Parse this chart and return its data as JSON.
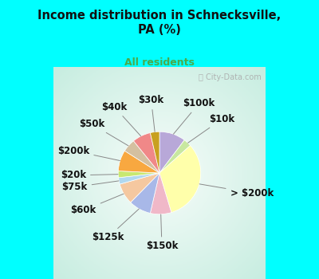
{
  "title": "Income distribution in Schnecksville,\nPA (%)",
  "subtitle": "All residents",
  "title_color": "#111111",
  "subtitle_color": "#4aaa4a",
  "bg_cyan": "#00ffff",
  "bg_chart_colors": [
    "#c8eee8",
    "#d8f0e0",
    "#e8f8f0"
  ],
  "watermark": "ⓘ City-Data.com",
  "slices": [
    {
      "label": "$100k",
      "value": 10.0,
      "color": "#b8a8d8"
    },
    {
      "label": "$10k",
      "value": 3.0,
      "color": "#c8e8a0"
    },
    {
      "label": "> $200k",
      "value": 31.0,
      "color": "#ffffaa"
    },
    {
      "label": "$150k",
      "value": 8.0,
      "color": "#f0b8c8"
    },
    {
      "label": "$125k",
      "value": 8.5,
      "color": "#a8b8e8"
    },
    {
      "label": "$60k",
      "value": 8.0,
      "color": "#f5c8a0"
    },
    {
      "label": "$75k",
      "value": 2.5,
      "color": "#b0d8f0"
    },
    {
      "label": "$20k",
      "value": 2.5,
      "color": "#c8e870"
    },
    {
      "label": "$200k",
      "value": 8.0,
      "color": "#f8a840"
    },
    {
      "label": "$50k",
      "value": 5.0,
      "color": "#d4c0a0"
    },
    {
      "label": "$40k",
      "value": 7.0,
      "color": "#f08888"
    },
    {
      "label": "$30k",
      "value": 3.5,
      "color": "#c8a020"
    }
  ],
  "startangle": 90,
  "label_fontsize": 8.5,
  "figsize": [
    4.0,
    3.5
  ],
  "dpi": 100
}
